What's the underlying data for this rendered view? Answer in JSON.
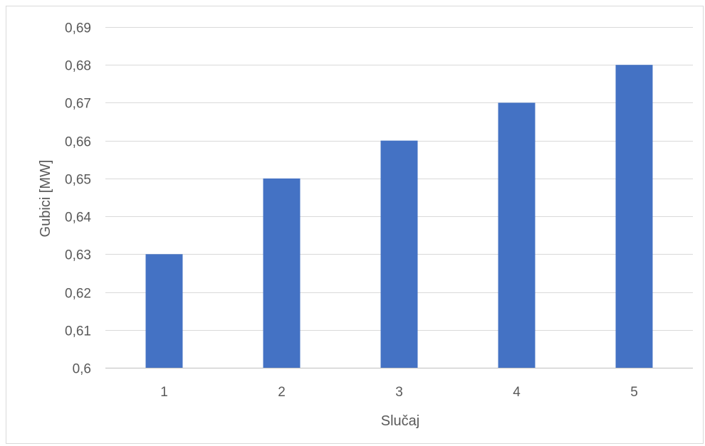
{
  "chart_data": {
    "type": "bar",
    "categories": [
      "1",
      "2",
      "3",
      "4",
      "5"
    ],
    "values": [
      0.63,
      0.65,
      0.66,
      0.67,
      0.68
    ],
    "xlabel": "Slučaj",
    "ylabel": "Gubici [MW]",
    "ylim": [
      0.6,
      0.69
    ],
    "yticks": [
      0.6,
      0.61,
      0.62,
      0.63,
      0.64,
      0.65,
      0.66,
      0.67,
      0.68,
      0.69
    ],
    "ytick_labels": [
      "0,6",
      "0,61",
      "0,62",
      "0,63",
      "0,64",
      "0,65",
      "0,66",
      "0,67",
      "0,68",
      "0,69"
    ],
    "grid": true,
    "bar_color": "#4472c4",
    "grid_color": "#d9d9d9",
    "axis_color": "#bfbfbf",
    "text_color": "#595959"
  }
}
